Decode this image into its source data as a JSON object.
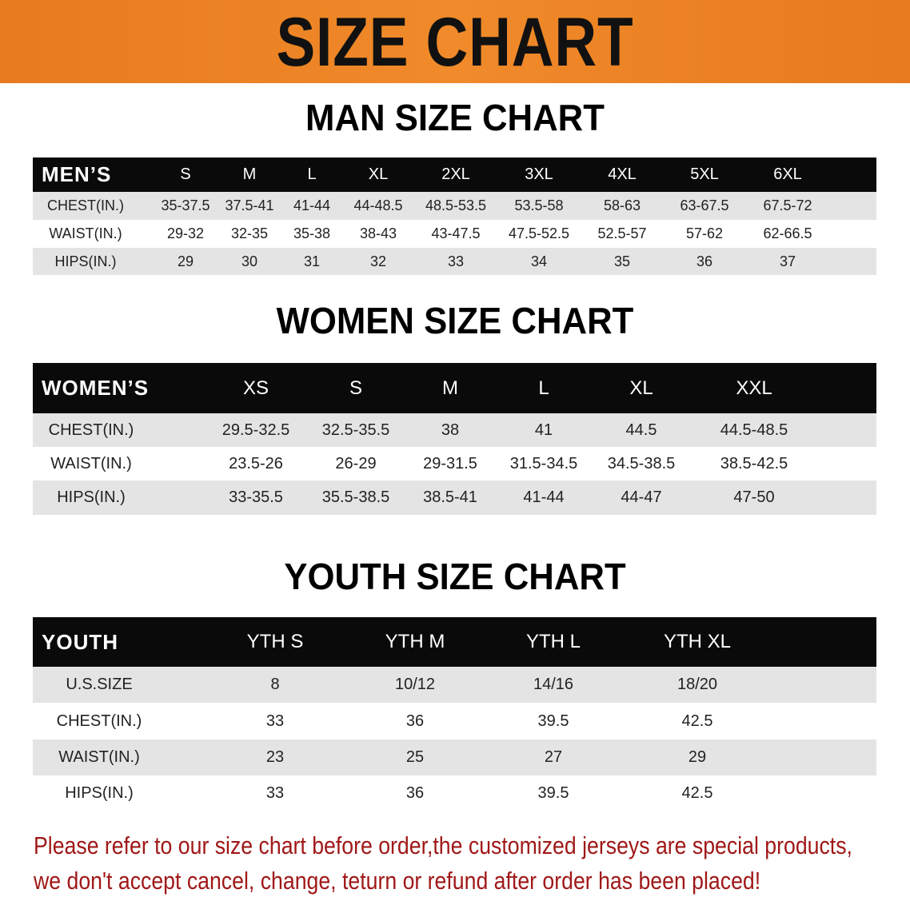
{
  "banner": {
    "title": "SIZE CHART",
    "color": "#e77a1e"
  },
  "men": {
    "heading": "MAN SIZE CHART",
    "header": [
      "MEN’S",
      "S",
      "M",
      "L",
      "XL",
      "2XL",
      "3XL",
      "4XL",
      "5XL",
      "6XL"
    ],
    "rows": [
      [
        "CHEST(IN.)",
        "35-37.5",
        "37.5-41",
        "41-44",
        "44-48.5",
        "48.5-53.5",
        "53.5-58",
        "58-63",
        "63-67.5",
        "67.5-72"
      ],
      [
        "WAIST(IN.)",
        "29-32",
        "32-35",
        "35-38",
        "38-43",
        "43-47.5",
        "47.5-52.5",
        "52.5-57",
        "57-62",
        "62-66.5"
      ],
      [
        "HIPS(IN.)",
        "29",
        "30",
        "31",
        "32",
        "33",
        "34",
        "35",
        "36",
        "37"
      ]
    ]
  },
  "women": {
    "heading": "WOMEN SIZE CHART",
    "header": [
      "WOMEN’S",
      "XS",
      "S",
      "M",
      "L",
      "XL",
      "XXL"
    ],
    "rows": [
      [
        "CHEST(IN.)",
        "29.5-32.5",
        "32.5-35.5",
        "38",
        "41",
        "44.5",
        "44.5-48.5"
      ],
      [
        "WAIST(IN.)",
        "23.5-26",
        "26-29",
        "29-31.5",
        "31.5-34.5",
        "34.5-38.5",
        "38.5-42.5"
      ],
      [
        "HIPS(IN.)",
        "33-35.5",
        "35.5-38.5",
        "38.5-41",
        "41-44",
        "44-47",
        "47-50"
      ]
    ]
  },
  "youth": {
    "heading": "YOUTH SIZE CHART",
    "header": [
      "YOUTH",
      "YTH S",
      "YTH M",
      "YTH L",
      "YTH XL"
    ],
    "rows": [
      [
        "U.S.SIZE",
        "8",
        "10/12",
        "14/16",
        "18/20"
      ],
      [
        "CHEST(IN.)",
        "33",
        "36",
        "39.5",
        "42.5"
      ],
      [
        "WAIST(IN.)",
        "23",
        "25",
        "27",
        "29"
      ],
      [
        "HIPS(IN.)",
        "33",
        "36",
        "39.5",
        "42.5"
      ]
    ]
  },
  "note": {
    "line1": "Please refer to our size chart before order,the customized jerseys are special products,",
    "line2": "we don't accept cancel, change, teturn or refund after order has been placed!",
    "color": "#a01818"
  }
}
